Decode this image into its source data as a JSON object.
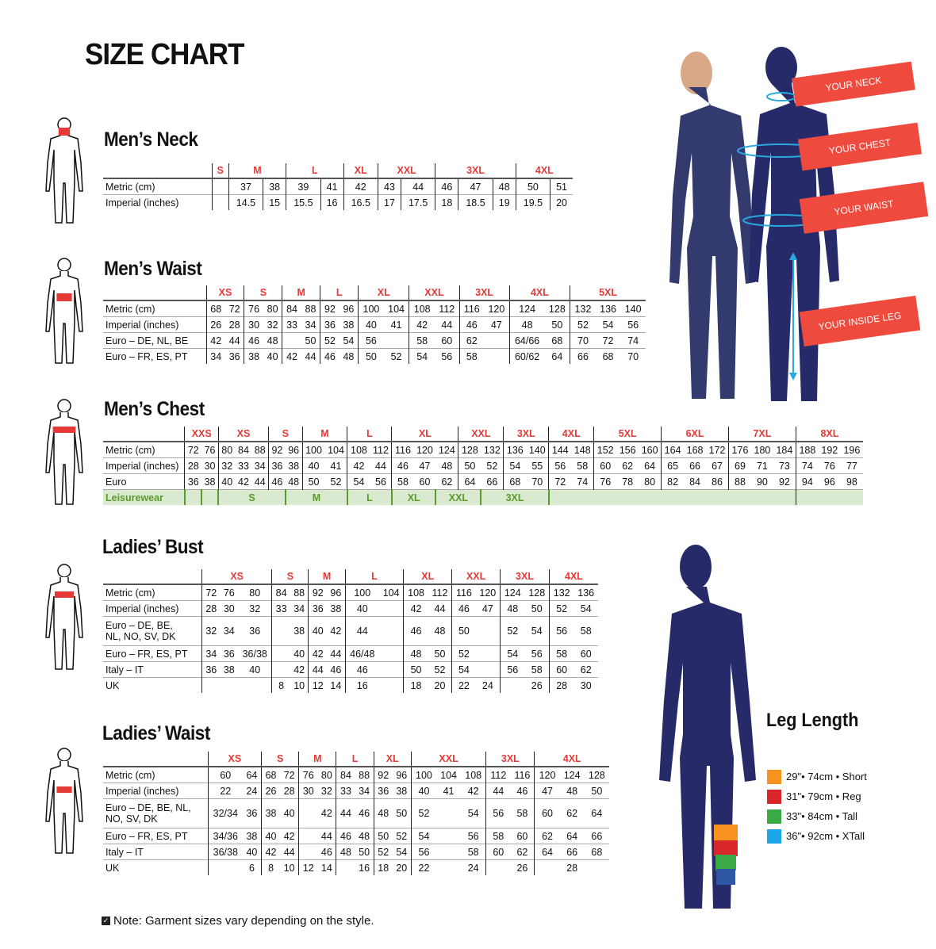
{
  "title": "SIZE CHART",
  "colors": {
    "accent_red": "#e53935",
    "banner_red": "#ee4b3e",
    "navy": "#262a68",
    "measure_blue": "#29a8e0",
    "leisure_green": "#5a9a2a",
    "leisure_bg": "#d9ead0"
  },
  "tables": {
    "mens_neck": {
      "title": "Men’s Neck",
      "groups": [
        {
          "label": "S",
          "span": 1
        },
        {
          "label": "M",
          "span": 2
        },
        {
          "label": "L",
          "span": 2
        },
        {
          "label": "XL",
          "span": 1
        },
        {
          "label": "XXL",
          "span": 2
        },
        {
          "label": "3XL",
          "span": 3
        },
        {
          "label": "4XL",
          "span": 2
        }
      ],
      "rows": [
        {
          "label": "Metric (cm)",
          "cells": [
            "",
            "37",
            "38",
            "39",
            "41",
            "42",
            "43",
            "44",
            "46",
            "47",
            "48",
            "50",
            "51"
          ]
        },
        {
          "label": "Imperial (inches)",
          "cells": [
            "",
            "14.5",
            "15",
            "15.5",
            "16",
            "16.5",
            "17",
            "17.5",
            "18",
            "18.5",
            "19",
            "19.5",
            "20"
          ]
        }
      ]
    },
    "mens_waist": {
      "title": "Men’s Waist",
      "groups": [
        {
          "label": "XS",
          "span": 2
        },
        {
          "label": "S",
          "span": 2
        },
        {
          "label": "M",
          "span": 2
        },
        {
          "label": "L",
          "span": 2
        },
        {
          "label": "XL",
          "span": 2
        },
        {
          "label": "XXL",
          "span": 2
        },
        {
          "label": "3XL",
          "span": 2
        },
        {
          "label": "4XL",
          "span": 2
        },
        {
          "label": "5XL",
          "span": 3
        }
      ],
      "rows": [
        {
          "label": "Metric (cm)",
          "cells": [
            "68",
            "72",
            "76",
            "80",
            "84",
            "88",
            "92",
            "96",
            "100",
            "104",
            "108",
            "112",
            "116",
            "120",
            "124",
            "128",
            "132",
            "136",
            "140"
          ]
        },
        {
          "label": "Imperial (inches)",
          "cells": [
            "26",
            "28",
            "30",
            "32",
            "33",
            "34",
            "36",
            "38",
            "40",
            "41",
            "42",
            "44",
            "46",
            "47",
            "48",
            "50",
            "52",
            "54",
            "56"
          ]
        },
        {
          "label": "Euro – DE, NL, BE",
          "cells": [
            "42",
            "44",
            "46",
            "48",
            "",
            "50",
            "52",
            "54",
            "56",
            "",
            "58",
            "60",
            "62",
            "",
            "64/66",
            "68",
            "70",
            "72",
            "74"
          ]
        },
        {
          "label": "Euro – FR, ES, PT",
          "cells": [
            "34",
            "36",
            "38",
            "40",
            "42",
            "44",
            "46",
            "48",
            "50",
            "52",
            "54",
            "56",
            "58",
            "",
            "60/62",
            "64",
            "66",
            "68",
            "70"
          ]
        }
      ]
    },
    "mens_chest": {
      "title": "Men’s Chest",
      "groups": [
        {
          "label": "XXS",
          "span": 2
        },
        {
          "label": "XS",
          "span": 3
        },
        {
          "label": "S",
          "span": 2
        },
        {
          "label": "M",
          "span": 2
        },
        {
          "label": "L",
          "span": 2
        },
        {
          "label": "XL",
          "span": 3
        },
        {
          "label": "XXL",
          "span": 2
        },
        {
          "label": "3XL",
          "span": 2
        },
        {
          "label": "4XL",
          "span": 2
        },
        {
          "label": "5XL",
          "span": 3
        },
        {
          "label": "6XL",
          "span": 3
        },
        {
          "label": "7XL",
          "span": 3
        },
        {
          "label": "8XL",
          "span": 3
        }
      ],
      "rows": [
        {
          "label": "Metric (cm)",
          "cells": [
            "72",
            "76",
            "80",
            "84",
            "88",
            "92",
            "96",
            "100",
            "104",
            "108",
            "112",
            "116",
            "120",
            "124",
            "128",
            "132",
            "136",
            "140",
            "144",
            "148",
            "152",
            "156",
            "160",
            "164",
            "168",
            "172",
            "176",
            "180",
            "184",
            "188",
            "192",
            "196"
          ]
        },
        {
          "label": "Imperial (inches)",
          "cells": [
            "28",
            "30",
            "32",
            "33",
            "34",
            "36",
            "38",
            "40",
            "41",
            "42",
            "44",
            "46",
            "47",
            "48",
            "50",
            "52",
            "54",
            "55",
            "56",
            "58",
            "60",
            "62",
            "64",
            "65",
            "66",
            "67",
            "69",
            "71",
            "73",
            "74",
            "76",
            "77"
          ]
        },
        {
          "label": "Euro",
          "cells": [
            "36",
            "38",
            "40",
            "42",
            "44",
            "46",
            "48",
            "50",
            "52",
            "54",
            "56",
            "58",
            "60",
            "62",
            "64",
            "66",
            "68",
            "70",
            "72",
            "74",
            "76",
            "78",
            "80",
            "82",
            "84",
            "86",
            "88",
            "90",
            "92",
            "94",
            "96",
            "98"
          ]
        }
      ],
      "leisurewear": {
        "label": "Leisurewear",
        "spans": [
          {
            "label": "",
            "span": 1
          },
          {
            "label": "",
            "span": 1
          },
          {
            "label": "S",
            "span": 4
          },
          {
            "label": "M",
            "span": 3
          },
          {
            "label": "L",
            "span": 2
          },
          {
            "label": "XL",
            "span": 2
          },
          {
            "label": "XXL",
            "span": 2
          },
          {
            "label": "3XL",
            "span": 3
          },
          {
            "label": "",
            "span": 11
          },
          {
            "label": "",
            "span": 3
          }
        ]
      }
    },
    "ladies_bust": {
      "title": "Ladies’ Bust",
      "groups": [
        {
          "label": "XS",
          "span": 3
        },
        {
          "label": "S",
          "span": 2
        },
        {
          "label": "M",
          "span": 2
        },
        {
          "label": "L",
          "span": 2
        },
        {
          "label": "XL",
          "span": 2
        },
        {
          "label": "XXL",
          "span": 2
        },
        {
          "label": "3XL",
          "span": 2
        },
        {
          "label": "4XL",
          "span": 2
        }
      ],
      "rows": [
        {
          "label": "Metric (cm)",
          "cells": [
            "72",
            "76",
            "80",
            "84",
            "88",
            "92",
            "96",
            "100",
            "104",
            "108",
            "112",
            "116",
            "120",
            "124",
            "128",
            "132",
            "136"
          ]
        },
        {
          "label": "Imperial (inches)",
          "cells": [
            "28",
            "30",
            "32",
            "33",
            "34",
            "36",
            "38",
            "40",
            "",
            "42",
            "44",
            "46",
            "47",
            "48",
            "50",
            "52",
            "54"
          ]
        },
        {
          "label": "Euro –  DE, BE,\nNL, NO, SV, DK",
          "cells": [
            "32",
            "34",
            "36",
            "",
            "38",
            "40",
            "42",
            "44",
            "",
            "46",
            "48",
            "50",
            "",
            "52",
            "54",
            "56",
            "58"
          ]
        },
        {
          "label": "Euro – FR, ES, PT",
          "cells": [
            "34",
            "36",
            "36/38",
            "",
            "40",
            "42",
            "44",
            "46/48",
            "",
            "48",
            "50",
            "52",
            "",
            "54",
            "56",
            "58",
            "60"
          ]
        },
        {
          "label": "Italy – IT",
          "cells": [
            "36",
            "38",
            "40",
            "",
            "42",
            "44",
            "46",
            "46",
            "",
            "50",
            "52",
            "54",
            "",
            "56",
            "58",
            "60",
            "62"
          ]
        },
        {
          "label": "UK",
          "cells": [
            "",
            "",
            "",
            "8",
            "10",
            "12",
            "14",
            "16",
            "",
            "18",
            "20",
            "22",
            "24",
            "",
            "26",
            "28",
            "30"
          ]
        }
      ]
    },
    "ladies_waist": {
      "title": "Ladies’ Waist",
      "groups": [
        {
          "label": "XS",
          "span": 2
        },
        {
          "label": "S",
          "span": 2
        },
        {
          "label": "M",
          "span": 2
        },
        {
          "label": "L",
          "span": 2
        },
        {
          "label": "XL",
          "span": 2
        },
        {
          "label": "XXL",
          "span": 3
        },
        {
          "label": "3XL",
          "span": 2
        },
        {
          "label": "4XL",
          "span": 3
        }
      ],
      "rows": [
        {
          "label": "Metric (cm)",
          "cells": [
            "60",
            "64",
            "68",
            "72",
            "76",
            "80",
            "84",
            "88",
            "92",
            "96",
            "100",
            "104",
            "108",
            "112",
            "116",
            "120",
            "124",
            "128"
          ]
        },
        {
          "label": "Imperial (inches)",
          "cells": [
            "22",
            "24",
            "26",
            "28",
            "30",
            "32",
            "33",
            "34",
            "36",
            "38",
            "40",
            "41",
            "42",
            "44",
            "46",
            "47",
            "48",
            "50"
          ]
        },
        {
          "label": "Euro – DE, BE, NL,\nNO, SV, DK",
          "cells": [
            "32/34",
            "36",
            "38",
            "40",
            "",
            "42",
            "44",
            "46",
            "48",
            "50",
            "52",
            "",
            "54",
            "56",
            "58",
            "60",
            "62",
            "64"
          ]
        },
        {
          "label": "Euro – FR, ES, PT",
          "cells": [
            "34/36",
            "38",
            "40",
            "42",
            "",
            "44",
            "46",
            "48",
            "50",
            "52",
            "54",
            "",
            "56",
            "58",
            "60",
            "62",
            "64",
            "66"
          ]
        },
        {
          "label": "Italy – IT",
          "cells": [
            "36/38",
            "40",
            "42",
            "44",
            "",
            "46",
            "48",
            "50",
            "52",
            "54",
            "56",
            "",
            "58",
            "60",
            "62",
            "64",
            "66",
            "68"
          ]
        },
        {
          "label": "UK",
          "cells": [
            "",
            "6",
            "8",
            "10",
            "12",
            "14",
            "",
            "16",
            "18",
            "20",
            "22",
            "",
            "24",
            "",
            "26",
            "",
            "28",
            ""
          ]
        }
      ]
    }
  },
  "measure_banners": [
    "YOUR NECK",
    "YOUR CHEST",
    "YOUR WAIST",
    "YOUR INSIDE LEG"
  ],
  "leg_length": {
    "title": "Leg Length",
    "items": [
      {
        "text": "29\"• 74cm • Short",
        "color": "#f7931e"
      },
      {
        "text": "31\"• 79cm • Reg",
        "color": "#d8262b"
      },
      {
        "text": "33\"• 84cm • Tall",
        "color": "#3aaa46"
      },
      {
        "text": "36\"• 92cm • XTall",
        "color": "#1ea7e8"
      }
    ]
  },
  "note": "Note: Garment sizes vary depending on the style.",
  "icons": {
    "note": "checkbox-icon",
    "figure": "human-outline-icon"
  }
}
